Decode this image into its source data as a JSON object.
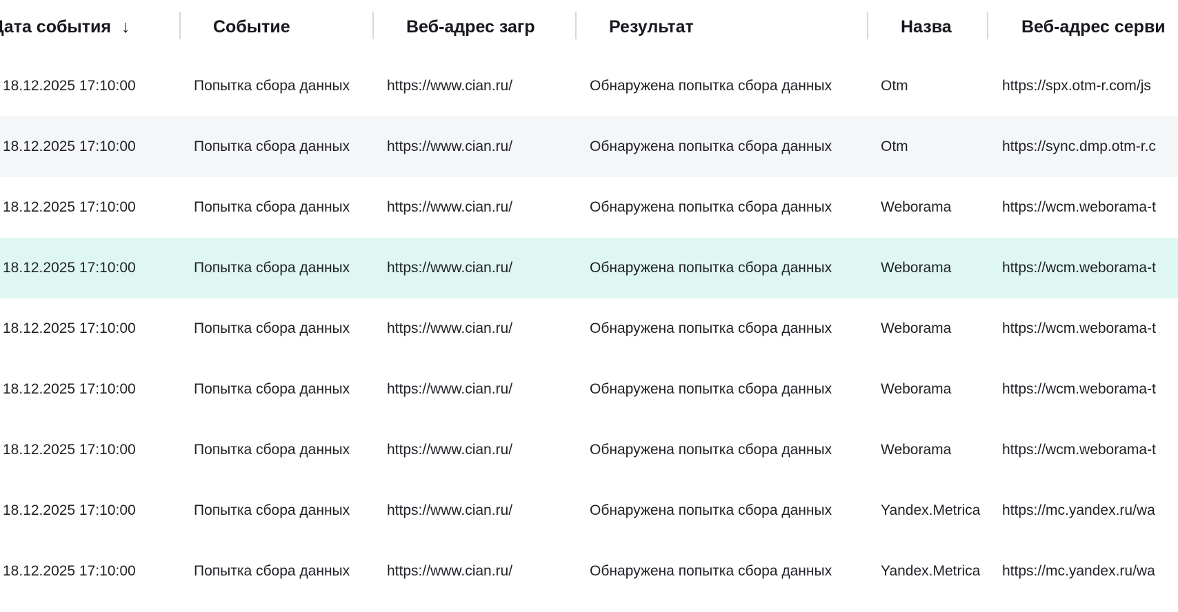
{
  "table": {
    "sort_icon": "arrow-down-icon",
    "columns": [
      {
        "label": "Дата события",
        "sort": "↓"
      },
      {
        "label": "Событие"
      },
      {
        "label": "Веб-адрес загр"
      },
      {
        "label": "Результат"
      },
      {
        "label": "Назва"
      },
      {
        "label": "Веб-адрес серви"
      }
    ],
    "row_colors": {
      "alt": "#f5f6f8",
      "selected": "#dff7f3"
    },
    "rows": [
      {
        "state": "normal",
        "cells": [
          "18.12.2025 17:10:00",
          "Попытка сбора данных",
          "https://www.cian.ru/",
          "Обнаружена попытка сбора данных",
          "Otm",
          "https://spx.otm-r.com/js"
        ]
      },
      {
        "state": "alt",
        "cells": [
          "18.12.2025 17:10:00",
          "Попытка сбора данных",
          "https://www.cian.ru/",
          "Обнаружена попытка сбора данных",
          "Otm",
          "https://sync.dmp.otm-r.c"
        ]
      },
      {
        "state": "normal",
        "cells": [
          "18.12.2025 17:10:00",
          "Попытка сбора данных",
          "https://www.cian.ru/",
          "Обнаружена попытка сбора данных",
          "Weborama",
          "https://wcm.weborama-t"
        ]
      },
      {
        "state": "selected",
        "cells": [
          "18.12.2025 17:10:00",
          "Попытка сбора данных",
          "https://www.cian.ru/",
          "Обнаружена попытка сбора данных",
          "Weborama",
          "https://wcm.weborama-t"
        ]
      },
      {
        "state": "normal",
        "cells": [
          "18.12.2025 17:10:00",
          "Попытка сбора данных",
          "https://www.cian.ru/",
          "Обнаружена попытка сбора данных",
          "Weborama",
          "https://wcm.weborama-t"
        ]
      },
      {
        "state": "normal",
        "cells": [
          "18.12.2025 17:10:00",
          "Попытка сбора данных",
          "https://www.cian.ru/",
          "Обнаружена попытка сбора данных",
          "Weborama",
          "https://wcm.weborama-t"
        ]
      },
      {
        "state": "normal",
        "cells": [
          "18.12.2025 17:10:00",
          "Попытка сбора данных",
          "https://www.cian.ru/",
          "Обнаружена попытка сбора данных",
          "Weborama",
          "https://wcm.weborama-t"
        ]
      },
      {
        "state": "normal",
        "cells": [
          "18.12.2025 17:10:00",
          "Попытка сбора данных",
          "https://www.cian.ru/",
          "Обнаружена попытка сбора данных",
          "Yandex.Metrica",
          "https://mc.yandex.ru/wa"
        ]
      },
      {
        "state": "normal",
        "cells": [
          "18.12.2025 17:10:00",
          "Попытка сбора данных",
          "https://www.cian.ru/",
          "Обнаружена попытка сбора данных",
          "Yandex.Metrica",
          "https://mc.yandex.ru/wa"
        ]
      }
    ]
  }
}
